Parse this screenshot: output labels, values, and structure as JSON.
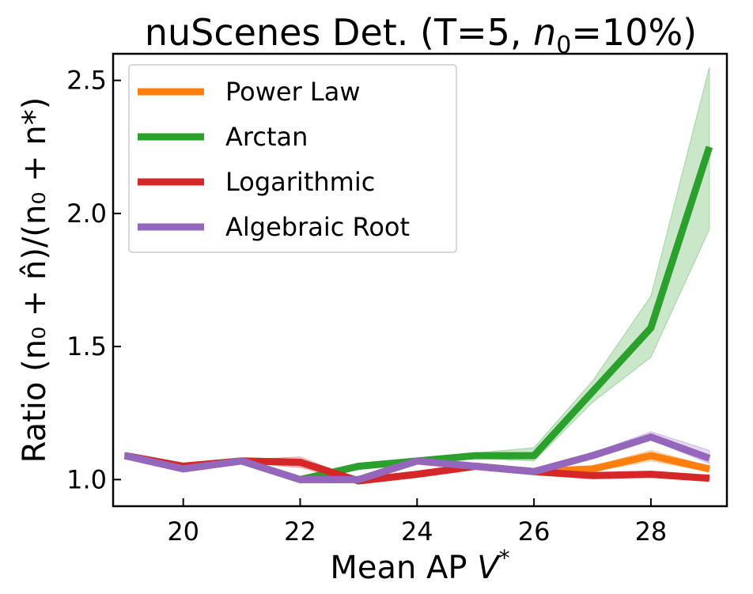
{
  "chart_data": {
    "type": "line",
    "title": "nuScenes Det. (T=5, n₀=10%)",
    "title_parts": {
      "prefix": "nuScenes Det. (T=5, ",
      "var": "n",
      "sub": "0",
      "suffix": "=10%)"
    },
    "xlabel": "Mean AP V*",
    "xlabel_parts": {
      "prefix": "Mean AP ",
      "var": "V",
      "sup": "*"
    },
    "ylabel": "Ratio (n₀ + n̂)/(n₀ + n*)",
    "xlim": [
      18.8,
      29.3
    ],
    "ylim": [
      0.9,
      2.6
    ],
    "xticks": [
      20,
      22,
      24,
      26,
      28
    ],
    "yticks": [
      1.0,
      1.5,
      2.0,
      2.5
    ],
    "ytick_labels": [
      "1.0",
      "1.5",
      "2.0",
      "2.5"
    ],
    "x": [
      19,
      20,
      21,
      22,
      23,
      24,
      25,
      26,
      27,
      28,
      29
    ],
    "legend_position": "upper-left",
    "series": [
      {
        "name": "Power Law",
        "color": "#ff7f0e",
        "values": [
          1.09,
          1.05,
          1.07,
          1.0,
          1.0,
          1.07,
          1.05,
          1.03,
          1.04,
          1.09,
          1.04
        ],
        "lower": [
          1.08,
          1.04,
          1.065,
          1.0,
          1.0,
          1.065,
          1.045,
          1.025,
          1.03,
          1.07,
          1.03
        ],
        "upper": [
          1.1,
          1.06,
          1.075,
          1.0,
          1.0,
          1.075,
          1.055,
          1.035,
          1.05,
          1.11,
          1.05
        ]
      },
      {
        "name": "Arctan",
        "color": "#2ca02c",
        "values": [
          1.09,
          1.05,
          1.07,
          1.0,
          1.05,
          1.07,
          1.09,
          1.09,
          1.33,
          1.57,
          2.25
        ],
        "lower": [
          1.08,
          1.04,
          1.065,
          1.0,
          1.04,
          1.065,
          1.08,
          1.07,
          1.29,
          1.46,
          1.94
        ],
        "upper": [
          1.1,
          1.06,
          1.075,
          1.0,
          1.06,
          1.08,
          1.1,
          1.12,
          1.37,
          1.69,
          2.55
        ]
      },
      {
        "name": "Logarithmic",
        "color": "#d62728",
        "values": [
          1.09,
          1.05,
          1.07,
          1.065,
          0.995,
          1.02,
          1.05,
          1.03,
          1.015,
          1.02,
          1.005
        ],
        "lower": [
          1.08,
          1.04,
          1.065,
          1.045,
          0.99,
          1.015,
          1.045,
          1.025,
          1.01,
          1.015,
          1.0
        ],
        "upper": [
          1.1,
          1.06,
          1.075,
          1.085,
          1.0,
          1.025,
          1.055,
          1.035,
          1.02,
          1.025,
          1.01
        ]
      },
      {
        "name": "Algebraic Root",
        "color": "#9467bd",
        "values": [
          1.09,
          1.04,
          1.07,
          1.0,
          1.0,
          1.07,
          1.05,
          1.03,
          1.09,
          1.16,
          1.08
        ],
        "lower": [
          1.08,
          1.035,
          1.065,
          1.0,
          1.0,
          1.065,
          1.045,
          1.025,
          1.08,
          1.15,
          1.06
        ],
        "upper": [
          1.1,
          1.05,
          1.075,
          1.0,
          1.0,
          1.075,
          1.055,
          1.035,
          1.1,
          1.18,
          1.11
        ]
      }
    ]
  }
}
